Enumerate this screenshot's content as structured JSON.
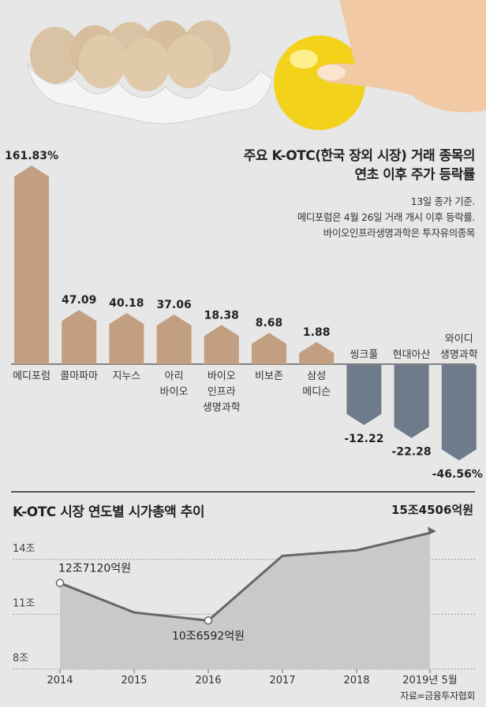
{
  "colors": {
    "background": "#e7e7e7",
    "positive": "#c29f80",
    "negative": "#6d7b8b",
    "area": "#c9c9c9",
    "line": "#666666"
  },
  "illustration": {
    "icons": [
      "egg-tray-icon",
      "golden-egg-icon",
      "hand-icon"
    ]
  },
  "chart_data": [
    {
      "type": "bar",
      "title": "주요 K-OTC(한국 장외 시장) 거래 종목의 연초 이후 주가 등락률",
      "title_line1": "주요 K-OTC(한국 장외 시장) 거래 종목의",
      "title_line2": "연초 이후 주가 등락률",
      "notes": [
        "13일 종가 기준.",
        "메디포럼은 4월 26일 거래 개시 이후 등락률.",
        "바이오인프라생명과학은 투자유의종목"
      ],
      "unit": "%",
      "categories": [
        [
          "메디포럼"
        ],
        [
          "콜마파마"
        ],
        [
          "지누스"
        ],
        [
          "아리",
          "바이오"
        ],
        [
          "바이오",
          "인프라",
          "생명과학"
        ],
        [
          "비보존"
        ],
        [
          "삼성",
          "메디슨"
        ],
        [
          "씽크풀"
        ],
        [
          "현대아산"
        ],
        [
          "와이디",
          "생명과학"
        ]
      ],
      "values": [
        161.83,
        47.09,
        40.18,
        37.06,
        18.38,
        8.68,
        1.88,
        -12.22,
        -22.28,
        -46.56
      ],
      "value_labels": [
        "161.83%",
        "47.09",
        "40.18",
        "37.06",
        "18.38",
        "8.68",
        "1.88",
        "-12.22",
        "-22.28",
        "-46.56%"
      ]
    },
    {
      "type": "area",
      "title": "K-OTC 시장 연도별 시가총액 추이",
      "x": [
        "2014",
        "2015",
        "2016",
        "2017",
        "2018",
        "2019년 5월"
      ],
      "values": [
        12.712,
        11.1,
        10.6592,
        14.2,
        14.5,
        15.4506
      ],
      "ylabel_unit": "조 원",
      "ylim": [
        8,
        15.8
      ],
      "yticks": [
        8,
        11,
        14
      ],
      "ytick_labels": [
        "8조",
        "11조",
        "14조"
      ],
      "annotations": [
        {
          "index": 0,
          "label": "12조7120억원"
        },
        {
          "index": 2,
          "label": "10조6592억원"
        },
        {
          "index": 5,
          "label": "15조4506억원"
        }
      ],
      "grid": true,
      "source": "자료=금융투자협회"
    }
  ]
}
